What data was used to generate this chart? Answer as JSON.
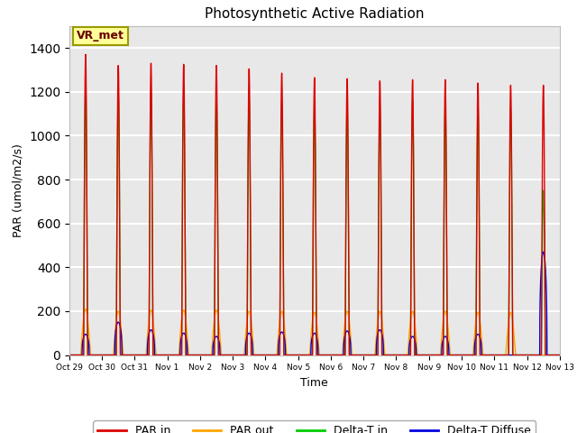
{
  "title": "Photosynthetic Active Radiation",
  "ylabel": "PAR (umol/m2/s)",
  "xlabel": "Time",
  "ylim": [
    0,
    1500
  ],
  "yticks": [
    0,
    200,
    400,
    600,
    800,
    1000,
    1200,
    1400
  ],
  "num_days": 15,
  "day_peaks_par_in": [
    1370,
    1320,
    1330,
    1325,
    1320,
    1305,
    1285,
    1265,
    1260,
    1250,
    1255,
    1255,
    1240,
    1230,
    1230
  ],
  "day_peaks_par_out": [
    210,
    200,
    205,
    205,
    205,
    200,
    200,
    195,
    200,
    200,
    200,
    200,
    195,
    195,
    0
  ],
  "day_peaks_green": [
    1215,
    1185,
    1195,
    1190,
    1190,
    1175,
    1155,
    1140,
    1135,
    1130,
    1155,
    1145,
    1135,
    1125,
    750
  ],
  "day_peaks_blue": [
    95,
    150,
    115,
    100,
    85,
    100,
    105,
    100,
    110,
    115,
    85,
    85,
    95,
    0,
    470
  ],
  "colors": {
    "par_in": "#dd0000",
    "par_out": "#ffa500",
    "delta_t_in": "#00cc00",
    "delta_t_diffuse": "#0000dd"
  },
  "legend_labels": [
    "PAR in",
    "PAR out",
    "Delta-T in",
    "Delta-T Diffuse"
  ],
  "annotation_text": "VR_met",
  "annotation_box_color": "#ffff99",
  "annotation_box_edge": "#999900",
  "background_color": "#e8e8e8",
  "grid_color": "#ffffff",
  "tick_labels": [
    "Oct 29",
    "Oct 30",
    "Oct 31",
    "Nov 1",
    "Nov 2",
    "Nov 3",
    "Nov 4",
    "Nov 5",
    "Nov 6",
    "Nov 7",
    "Nov 8",
    "Nov 9",
    "Nov 10",
    "Nov 11",
    "Nov 12",
    "Nov 13"
  ]
}
